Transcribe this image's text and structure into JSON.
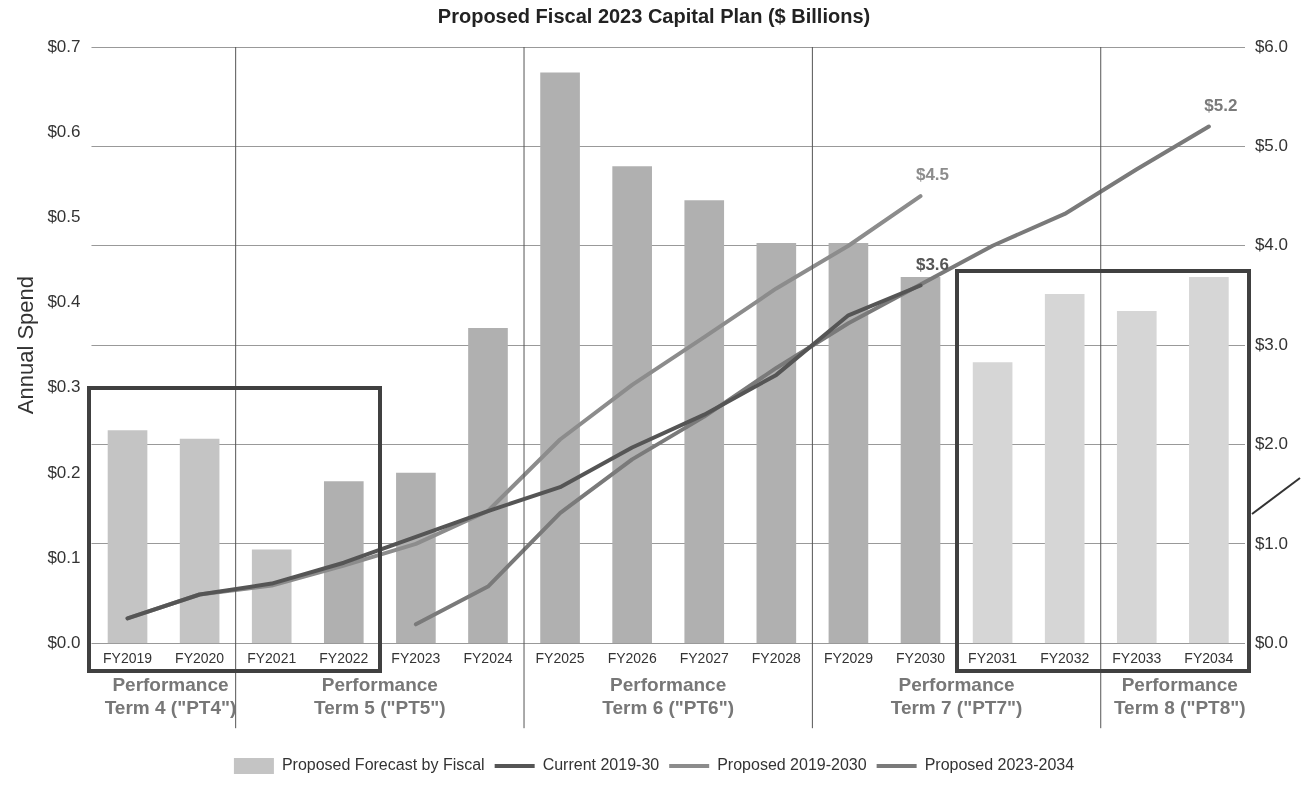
{
  "chart_data": {
    "type": "bar",
    "title": "Proposed Fiscal 2023 Capital Plan ($ Billions)",
    "ylabel": "Annual Spend",
    "categories": [
      "FY2019",
      "FY2020",
      "FY2021",
      "FY2022",
      "FY2023",
      "FY2024",
      "FY2025",
      "FY2026",
      "FY2027",
      "FY2028",
      "FY2029",
      "FY2030",
      "FY2031",
      "FY2032",
      "FY2033",
      "FY2034"
    ],
    "series": [
      {
        "name": "Proposed Forecast by Fiscal",
        "colors": [
          "#c4c4c4",
          "#c4c4c4",
          "#c4c4c4",
          "#b0b0b0",
          "#b0b0b0",
          "#b0b0b0",
          "#b0b0b0",
          "#b0b0b0",
          "#b0b0b0",
          "#b0b0b0",
          "#b0b0b0",
          "#b0b0b0",
          "#d6d6d6",
          "#d6d6d6",
          "#d6d6d6",
          "#d6d6d6"
        ],
        "values": [
          0.25,
          0.24,
          0.11,
          0.19,
          0.2,
          0.37,
          0.67,
          0.56,
          0.52,
          0.47,
          0.47,
          0.43,
          0.33,
          0.41,
          0.39,
          0.43
        ]
      },
      {
        "name": "Current 2019-30",
        "type": "line",
        "axis": "y2",
        "color": "#555555",
        "values": [
          0.25,
          0.49,
          0.6,
          0.81,
          1.07,
          1.33,
          1.57,
          1.97,
          2.3,
          2.7,
          3.3,
          3.6,
          null,
          null,
          null,
          null
        ],
        "value_labels": [
          null,
          null,
          null,
          null,
          null,
          null,
          null,
          null,
          null,
          null,
          null,
          "$3.6",
          null,
          null,
          null,
          null
        ]
      },
      {
        "name": "Proposed 2019-2030",
        "type": "line",
        "axis": "y2",
        "color": "#8c8c8c",
        "values": [
          0.25,
          0.49,
          0.58,
          0.78,
          1.0,
          1.33,
          2.05,
          2.6,
          3.08,
          3.57,
          4.0,
          4.5,
          null,
          null,
          null,
          null
        ],
        "value_labels": [
          null,
          null,
          null,
          null,
          null,
          null,
          null,
          null,
          null,
          null,
          null,
          "$4.5",
          null,
          null,
          null,
          null
        ]
      },
      {
        "name": "Proposed 2023-2034",
        "type": "line",
        "axis": "y2",
        "color": "#7a7a7a",
        "values": [
          null,
          null,
          null,
          null,
          0.19,
          0.57,
          1.31,
          1.85,
          2.28,
          2.77,
          3.22,
          3.61,
          4.0,
          4.32,
          4.77,
          5.2
        ],
        "value_labels": [
          null,
          null,
          null,
          null,
          null,
          null,
          null,
          null,
          null,
          null,
          null,
          null,
          null,
          null,
          null,
          "$5.2"
        ]
      }
    ],
    "ylim": [
      0,
      0.7
    ],
    "yticks": [
      {
        "value": 0,
        "label": "$0.0"
      },
      {
        "value": 0.1,
        "label": "$0.1"
      },
      {
        "value": 0.2,
        "label": "$0.2"
      },
      {
        "value": 0.3,
        "label": "$0.3"
      },
      {
        "value": 0.4,
        "label": "$0.4"
      },
      {
        "value": 0.5,
        "label": "$0.5"
      },
      {
        "value": 0.6,
        "label": "$0.6"
      },
      {
        "value": 0.7,
        "label": "$0.7"
      }
    ],
    "y2lim": [
      0,
      6
    ],
    "y2ticks": [
      {
        "value": 0,
        "label": "$0.0"
      },
      {
        "value": 1,
        "label": "$1.0"
      },
      {
        "value": 2,
        "label": "$2.0"
      },
      {
        "value": 3,
        "label": "$3.0"
      },
      {
        "value": 4,
        "label": "$4.0"
      },
      {
        "value": 5,
        "label": "$5.0"
      },
      {
        "value": 6,
        "label": "$6.0"
      }
    ],
    "grid": "y",
    "legend": "bottom",
    "marker": "none",
    "line_style": "solid",
    "annotations": [
      "Performance Term 4 (\"PT4\")",
      "Performance Term 5 (\"PT5\")",
      "Performance Term 6 (\"PT6\")",
      "Performance Term 7 (\"PT7\")",
      "Performance Term 8 (\"PT8\")"
    ]
  }
}
